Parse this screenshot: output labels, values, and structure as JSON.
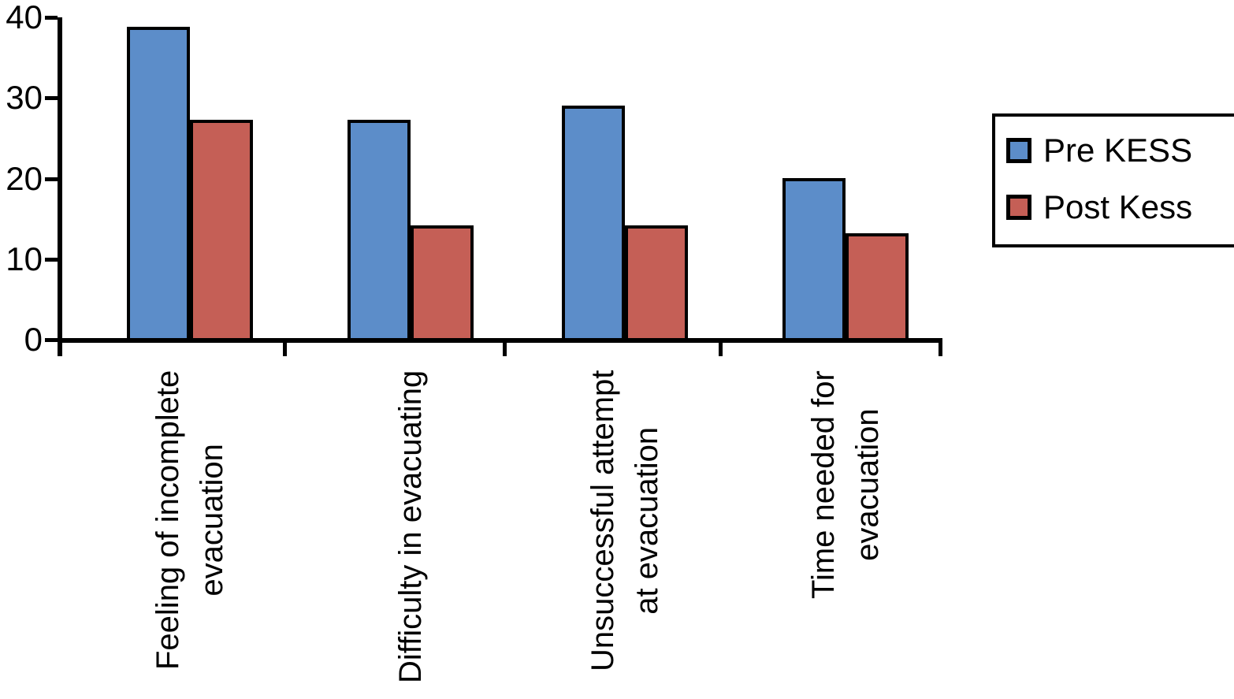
{
  "chart_data": {
    "type": "bar",
    "title": "",
    "xlabel": "",
    "ylabel": "",
    "categories": [
      "Feeling of incomplete\nevacuation",
      "Difficulty in evacuating",
      "Unsuccessful attempt\nat evacuation",
      "Time needed for\nevacuation"
    ],
    "series": [
      {
        "name": "Pre KESS",
        "color": "#5c8dc9",
        "values": [
          38.8,
          27.3,
          29,
          20
        ]
      },
      {
        "name": "Post Kess",
        "color": "#c55f56",
        "values": [
          27.3,
          14.2,
          14.2,
          13.2
        ]
      }
    ],
    "ylim": [
      0,
      40
    ],
    "yticks": [
      0,
      10,
      20,
      30,
      40
    ],
    "grid": false,
    "legend_position": "right",
    "axis_color": "#000000",
    "bar_border_color": "#000000",
    "text_color": "#000000",
    "background_color": "#ffffff"
  }
}
